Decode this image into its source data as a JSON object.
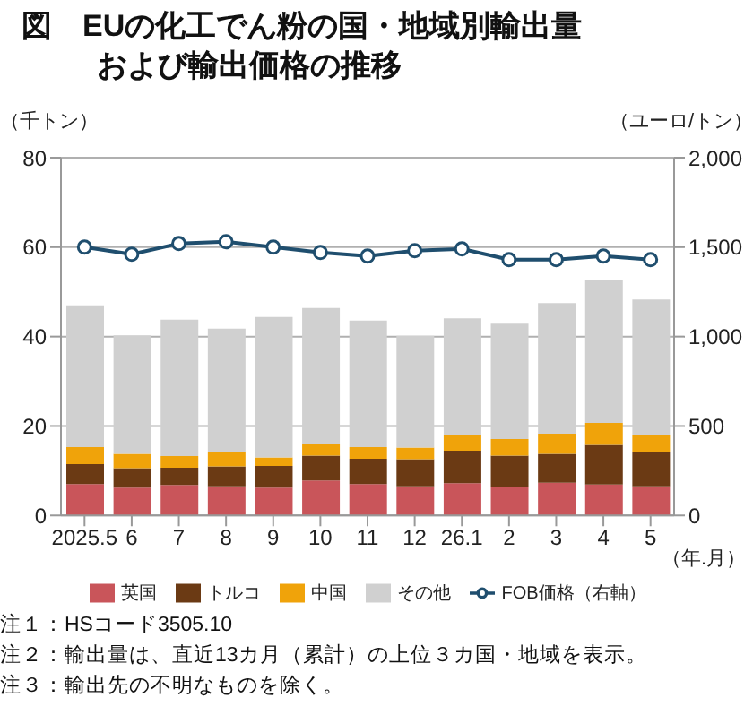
{
  "chart_data": {
    "type": "bar",
    "title": "図　EUの化工でん粉の国・地域別輸出量および輸出価格の推移",
    "ylabel": "（千トン）",
    "y2label": "（ユーロ/トン）",
    "xlabel": "（年.月）",
    "categories": [
      "2025.5",
      "6",
      "7",
      "8",
      "9",
      "10",
      "11",
      "12",
      "26.1",
      "2",
      "3",
      "4",
      "5"
    ],
    "stacked": true,
    "grid": "y",
    "legend": "bottom",
    "marker": "circle",
    "line_style": "solid",
    "ylim": [
      0,
      80
    ],
    "yticks": [
      0,
      20,
      40,
      60,
      80
    ],
    "y2lim": [
      0,
      2000
    ],
    "y2ticks": [
      0,
      500,
      {
        "value": 1000,
        "label": "1,000"
      },
      {
        "value": 1500,
        "label": "1,500"
      },
      {
        "value": 2000,
        "label": "2,000"
      }
    ],
    "series": [
      {
        "name": "英国",
        "color": "#c9555a",
        "values": [
          7.0,
          6.2,
          6.8,
          6.5,
          6.2,
          7.8,
          7.0,
          6.5,
          7.2,
          6.4,
          7.3,
          6.9,
          6.5
        ]
      },
      {
        "name": "トルコ",
        "color": "#6b3a14",
        "values": [
          4.5,
          4.4,
          3.9,
          4.5,
          4.9,
          5.6,
          5.7,
          6.1,
          7.3,
          7.0,
          6.5,
          8.9,
          7.8
        ]
      },
      {
        "name": "中国",
        "color": "#f0a30a",
        "values": [
          3.8,
          3.2,
          2.6,
          3.3,
          1.9,
          2.7,
          2.6,
          2.6,
          3.6,
          3.7,
          4.5,
          4.9,
          3.8
        ]
      },
      {
        "name": "その他",
        "color": "#d0d0d0",
        "values": [
          31.7,
          26.5,
          30.5,
          27.5,
          31.4,
          30.3,
          28.3,
          25.0,
          26.0,
          25.8,
          29.2,
          31.9,
          30.2
        ]
      },
      {
        "name": "FOB価格（右軸）",
        "type": "line",
        "axis": "y2",
        "color": "#1f4e6e",
        "values": [
          1500,
          1460,
          1520,
          1530,
          1500,
          1470,
          1450,
          1480,
          1490,
          1430,
          1430,
          1450,
          1430
        ]
      }
    ],
    "annotations": [
      "注１：HSコード3505.10",
      "注２：輸出量は、直近13カ月（累計）の上位３カ国・地域を表示。",
      "注３：輸出先の不明なものを除く。"
    ]
  }
}
